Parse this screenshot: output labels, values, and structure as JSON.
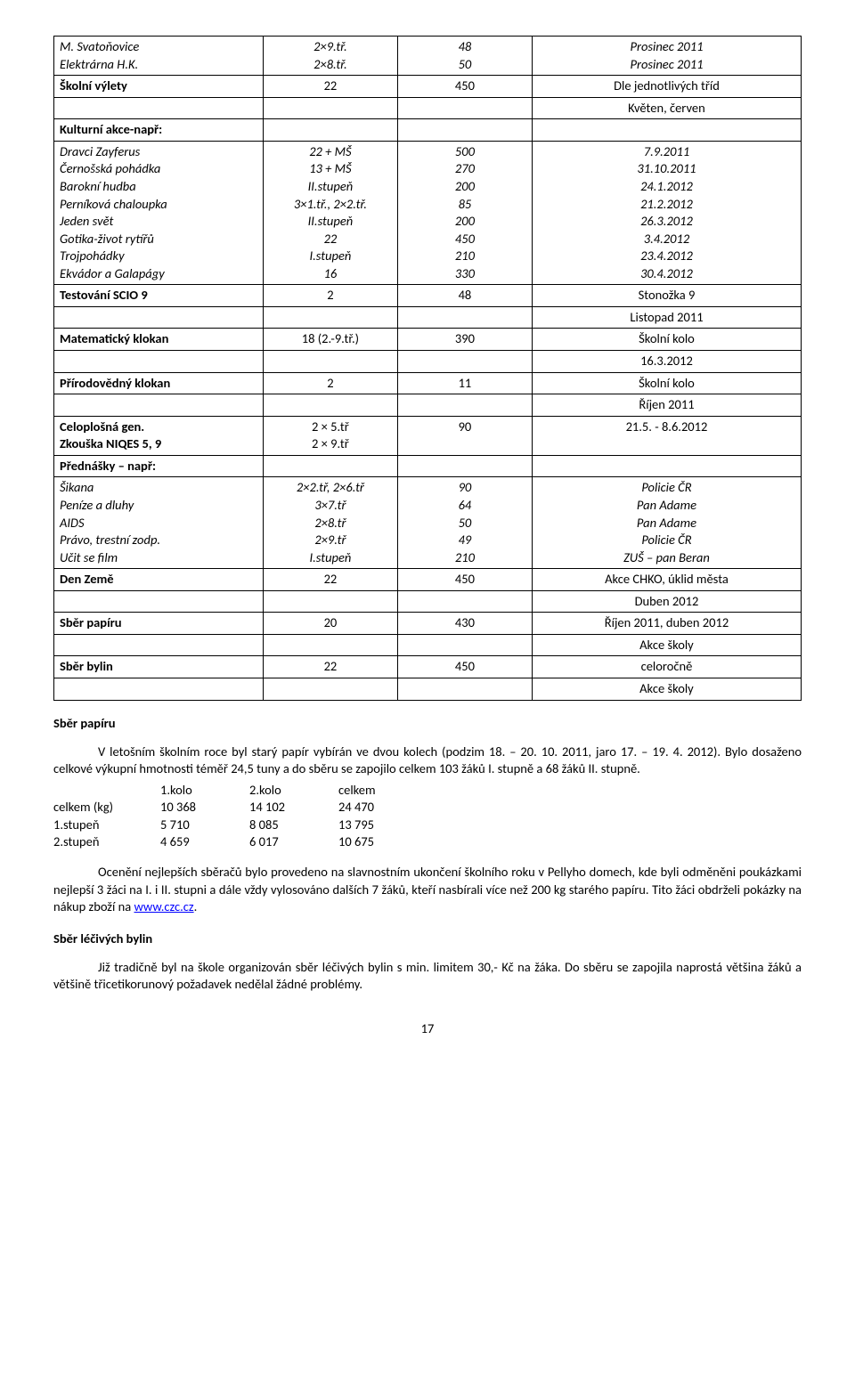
{
  "rows": [
    {
      "c1": "M. Svatoňovice\nElektrárna H.K.",
      "c1_style": "italic",
      "c2": "2×9.tř.\n2×8.tř.",
      "c2_style": "italic",
      "c3": "48\n50",
      "c3_style": "italic",
      "c4": "Prosinec 2011\nProsinec 2011",
      "c4_style": "italic"
    },
    {
      "c1": "Školní výlety",
      "c1_style": "bold",
      "c2": "22",
      "c3": "450",
      "c4": "Dle jednotlivých tříd"
    },
    {
      "c1": "",
      "c2": "",
      "c3": "",
      "c4": "Květen, červen"
    },
    {
      "c1": "Kulturní akce-např:",
      "c1_style": "bold",
      "c2": "",
      "c3": "",
      "c4": ""
    },
    {
      "c1": "Dravci Zayferus\nČernošská pohádka\nBarokní hudba\nPerníková chaloupka\nJeden svět\nGotika-život rytířů\nTrojpohádky\nEkvádor a Galapágy",
      "c1_style": "italic",
      "c2": "22 + MŠ\n13 + MŠ\nII.stupeň\n3×1.tř., 2×2.tř.\nII.stupeň\n22\nI.stupeň\n16",
      "c2_style": "italic",
      "c3": "500\n270\n200\n85\n200\n450\n210\n330",
      "c3_style": "italic",
      "c4": "7.9.2011\n31.10.2011\n24.1.2012\n21.2.2012\n26.3.2012\n3.4.2012\n23.4.2012\n30.4.2012",
      "c4_style": "italic"
    },
    {
      "c1": "Testování SCIO 9",
      "c1_style": "bold",
      "c2": "2",
      "c3": "48",
      "c4": "Stonožka 9"
    },
    {
      "c1": "",
      "c2": "",
      "c3": "",
      "c4": "Listopad 2011"
    },
    {
      "c1": "Matematický klokan",
      "c1_style": "bold",
      "c2": "18 (2.-9.tř.)",
      "c3": "390",
      "c4": "Školní kolo"
    },
    {
      "c1": "",
      "c2": "",
      "c3": "",
      "c4": "16.3.2012"
    },
    {
      "c1": "Přírodovědný klokan",
      "c1_style": "bold",
      "c2": "2",
      "c3": "11",
      "c4": "Školní kolo"
    },
    {
      "c1": "",
      "c2": "",
      "c3": "",
      "c4": "Říjen 2011"
    },
    {
      "c1": "Celoplošná gen.\nZkouška NIQES 5, 9",
      "c1_style": "bold",
      "c2": "2 × 5.tř\n2 × 9.tř",
      "c3": "90",
      "c4": "21.5. - 8.6.2012"
    },
    {
      "c1": "Přednášky – např:",
      "c1_style": "bold",
      "c2": "",
      "c3": "",
      "c4": ""
    },
    {
      "c1": "Šikana\nPeníze a dluhy\nAIDS\nPrávo, trestní zodp.\nUčit se film",
      "c1_style": "italic",
      "c2": "2×2.tř, 2×6.tř\n3×7.tř\n2×8.tř\n2×9.tř\nI.stupeň",
      "c2_style": "italic",
      "c3": "90\n64\n50\n49\n210",
      "c3_style": "italic",
      "c4": "Policie ČR\nPan Adame\nPan Adame\nPolicie ČR\nZUŠ – pan Beran",
      "c4_style": "italic"
    },
    {
      "c1": "Den Země",
      "c1_style": "bold",
      "c2": "22",
      "c3": "450",
      "c4": "Akce CHKO, úklid města"
    },
    {
      "c1": "",
      "c2": "",
      "c3": "",
      "c4": "Duben 2012"
    },
    {
      "c1": "Sběr papíru",
      "c1_style": "bold",
      "c2": "20",
      "c3": "430",
      "c4": "Říjen 2011, duben 2012"
    },
    {
      "c1": "",
      "c2": "",
      "c3": "",
      "c4": "Akce školy"
    },
    {
      "c1": "Sběr bylin",
      "c1_style": "bold",
      "c2": "22",
      "c3": "450",
      "c4": "celoročně"
    },
    {
      "c1": "",
      "c2": "",
      "c3": "",
      "c4": "Akce školy"
    }
  ],
  "section1": {
    "heading": "Sběr papíru",
    "para1": "V letošním školním roce byl starý papír vybírán ve dvou kolech (podzim  18. – 20. 10. 2011, jaro   17. – 19. 4. 2012). Bylo dosaženo celkové výkupní hmotnosti téměř 24,5 tuny a do sběru se zapojilo celkem 103 žáků I. stupně a 68 žáků II. stupně.",
    "tab": [
      [
        "",
        "1.kolo",
        "2.kolo",
        "celkem"
      ],
      [
        "celkem (kg)",
        "10 368",
        "14 102",
        "24 470"
      ],
      [
        "1.stupeň",
        "5 710",
        "8 085",
        "13 795"
      ],
      [
        "2.stupeň",
        "4 659",
        "6 017",
        "10 675"
      ]
    ],
    "para2a": "Ocenění nejlepších sběračů bylo provedeno na slavnostním ukončení školního roku v Pellyho domech, kde byli odměněni poukázkami nejlepší 3 žáci na I. i II. stupni a dále vždy vylosováno dalších 7 žáků, kteří nasbírali více než 200 kg starého papíru. Tito žáci obdrželi pokázky na nákup zboží na ",
    "link_text": "www.czc.cz",
    "para2b": "."
  },
  "section2": {
    "heading": "Sběr léčivých bylin",
    "para": "Již tradičně byl na škole organizován sběr léčivých bylin s min. limitem 30,- Kč na žáka. Do sběru se zapojila naprostá většina žáků a většině třicetikorunový požadavek nedělal žádné problémy."
  },
  "page_number": "17"
}
